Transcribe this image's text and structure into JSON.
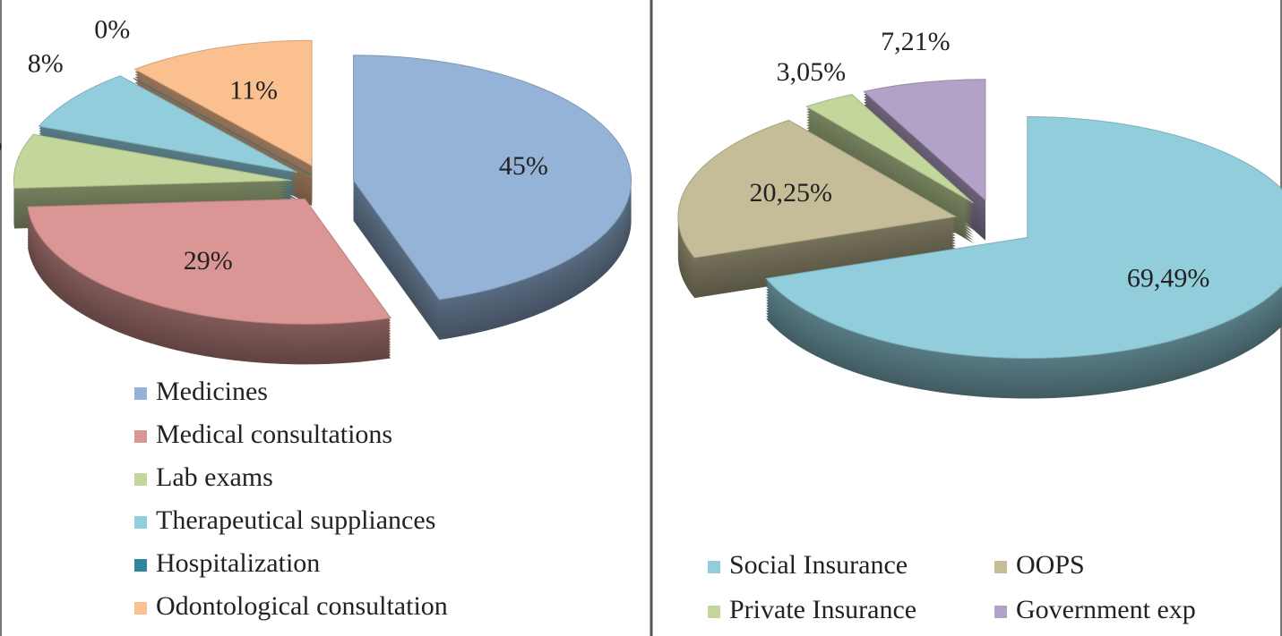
{
  "chart_data": [
    {
      "type": "pie",
      "categories": [
        "Medicines",
        "Medical consultations",
        "Lab exams",
        "Therapeutical suppliances",
        "Hospitalization",
        "Odontological consultation"
      ],
      "values": [
        45,
        29,
        7,
        8,
        0,
        11
      ],
      "value_labels": [
        "45%",
        "29%",
        "7%",
        "8%",
        "0%",
        "11%"
      ],
      "colors": [
        "#95b3d7",
        "#d99694",
        "#c3d69b",
        "#92cddc",
        "#31859c",
        "#fac090"
      ],
      "legend": "bottom"
    },
    {
      "type": "pie",
      "categories": [
        "Social Insurance",
        "OOPS",
        "Private Insurance",
        "Government exp"
      ],
      "values": [
        69.49,
        20.25,
        3.05,
        7.21
      ],
      "value_labels": [
        "69,49%",
        "20,25%",
        "3,05%",
        "7,21%"
      ],
      "colors": [
        "#92cddc",
        "#c4bd97",
        "#c3d69b",
        "#b3a2c7"
      ],
      "legend": "bottom"
    }
  ]
}
